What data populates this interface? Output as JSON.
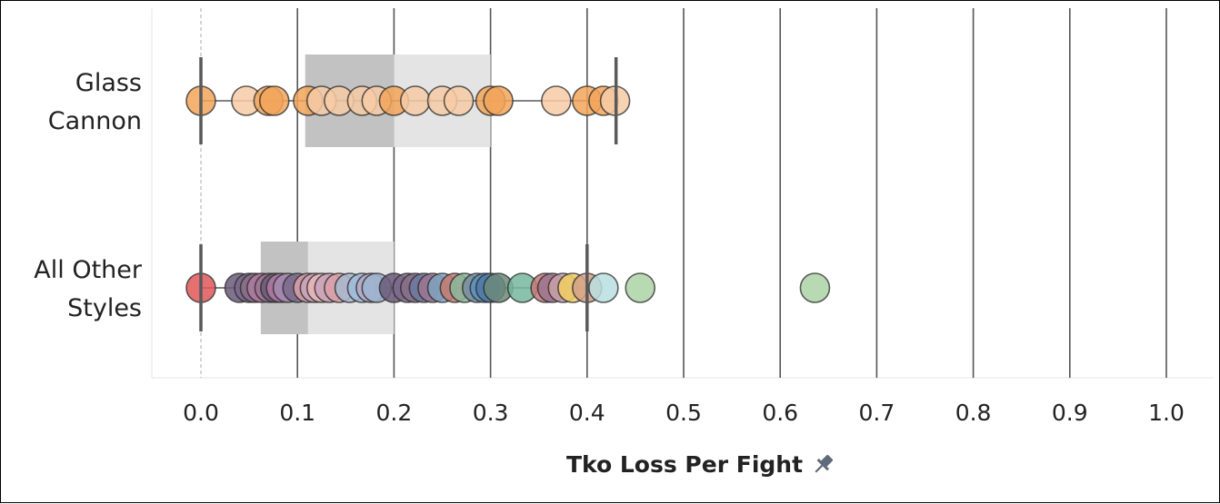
{
  "chart_data": {
    "type": "scatter",
    "subtype": "box-and-whisker with jittered-free dot strip",
    "xlabel": "Tko Loss Per Fight",
    "xlim": [
      0.0,
      1.0
    ],
    "x_ticks": [
      "0.0",
      "0.1",
      "0.2",
      "0.3",
      "0.4",
      "0.5",
      "0.6",
      "0.7",
      "0.8",
      "0.9",
      "1.0"
    ],
    "x_tick_values": [
      0.0,
      0.1,
      0.2,
      0.3,
      0.4,
      0.5,
      0.6,
      0.7,
      0.8,
      0.9,
      1.0
    ],
    "grid": "vertical",
    "axis_title_icon": "pin-icon",
    "categories": [
      "Glass Cannon",
      "All Other Styles"
    ],
    "category_label_lines": [
      [
        "Glass",
        "Cannon"
      ],
      [
        "All Other",
        "Styles"
      ]
    ],
    "series": [
      {
        "category": "Glass Cannon",
        "box": {
          "min": 0.0,
          "q1": 0.108,
          "median": 0.2,
          "q3": 0.3,
          "max": 0.43
        },
        "points": [
          {
            "x": 0.0,
            "color": "#f2a55a"
          },
          {
            "x": 0.047,
            "color": "#f7cba6"
          },
          {
            "x": 0.07,
            "color": "#f2a55a"
          },
          {
            "x": 0.076,
            "color": "#f2a55a"
          },
          {
            "x": 0.111,
            "color": "#f2a55a"
          },
          {
            "x": 0.125,
            "color": "#f7cba6"
          },
          {
            "x": 0.143,
            "color": "#f7cba6"
          },
          {
            "x": 0.167,
            "color": "#f7cba6"
          },
          {
            "x": 0.182,
            "color": "#f7cba6"
          },
          {
            "x": 0.2,
            "color": "#f2a55a"
          },
          {
            "x": 0.222,
            "color": "#f7cba6"
          },
          {
            "x": 0.25,
            "color": "#f7cba6"
          },
          {
            "x": 0.267,
            "color": "#f7cba6"
          },
          {
            "x": 0.3,
            "color": "#f2a55a"
          },
          {
            "x": 0.308,
            "color": "#f2a55a"
          },
          {
            "x": 0.368,
            "color": "#f7cba6"
          },
          {
            "x": 0.4,
            "color": "#f2a55a"
          },
          {
            "x": 0.417,
            "color": "#f2a55a"
          },
          {
            "x": 0.429,
            "color": "#f7cba6"
          }
        ]
      },
      {
        "category": "All Other Styles",
        "box": {
          "min": 0.0,
          "q1": 0.062,
          "median": 0.111,
          "q3": 0.2,
          "max": 0.4
        },
        "points": [
          {
            "x": 0.0,
            "color": "#e15759"
          },
          {
            "x": 0.04,
            "color": "#6b5b7a"
          },
          {
            "x": 0.05,
            "color": "#7a6a8c"
          },
          {
            "x": 0.056,
            "color": "#8a6f88"
          },
          {
            "x": 0.063,
            "color": "#b07aa1"
          },
          {
            "x": 0.071,
            "color": "#9c7590"
          },
          {
            "x": 0.077,
            "color": "#6b5b7a"
          },
          {
            "x": 0.083,
            "color": "#b07aa1"
          },
          {
            "x": 0.09,
            "color": "#a58bb0"
          },
          {
            "x": 0.1,
            "color": "#7a6a8c"
          },
          {
            "x": 0.111,
            "color": "#d9a0a8"
          },
          {
            "x": 0.118,
            "color": "#c9a4b8"
          },
          {
            "x": 0.125,
            "color": "#e7b6b9"
          },
          {
            "x": 0.133,
            "color": "#c9a4b8"
          },
          {
            "x": 0.143,
            "color": "#d9a0a8"
          },
          {
            "x": 0.154,
            "color": "#a8b8d0"
          },
          {
            "x": 0.167,
            "color": "#a0bcd8"
          },
          {
            "x": 0.176,
            "color": "#b8a8c8"
          },
          {
            "x": 0.182,
            "color": "#9cb4d0"
          },
          {
            "x": 0.2,
            "color": "#6b5b7a"
          },
          {
            "x": 0.214,
            "color": "#7a6a8c"
          },
          {
            "x": 0.222,
            "color": "#8a6f88"
          },
          {
            "x": 0.231,
            "color": "#6b7aa0"
          },
          {
            "x": 0.24,
            "color": "#9c7590"
          },
          {
            "x": 0.25,
            "color": "#7fa3c0"
          },
          {
            "x": 0.263,
            "color": "#c77a70"
          },
          {
            "x": 0.273,
            "color": "#8ab89a"
          },
          {
            "x": 0.286,
            "color": "#7a8ca0"
          },
          {
            "x": 0.294,
            "color": "#5a90c0"
          },
          {
            "x": 0.3,
            "color": "#4e79a7"
          },
          {
            "x": 0.308,
            "color": "#6b8a7a"
          },
          {
            "x": 0.333,
            "color": "#76b7a0"
          },
          {
            "x": 0.357,
            "color": "#c87878"
          },
          {
            "x": 0.364,
            "color": "#9c7590"
          },
          {
            "x": 0.375,
            "color": "#c8a0a8"
          },
          {
            "x": 0.385,
            "color": "#f1ce63"
          },
          {
            "x": 0.4,
            "color": "#d4a08a"
          },
          {
            "x": 0.417,
            "color": "#b9dfe0"
          },
          {
            "x": 0.455,
            "color": "#acd4a4"
          },
          {
            "x": 0.636,
            "color": "#acd4a4"
          }
        ]
      }
    ]
  },
  "style": {
    "box_lower_color": "#c2c2c2",
    "box_upper_color": "#e4e4e4",
    "whisker_color": "#595959",
    "grid_color": "#555555",
    "zero_line_color": "#aaaaaa"
  }
}
